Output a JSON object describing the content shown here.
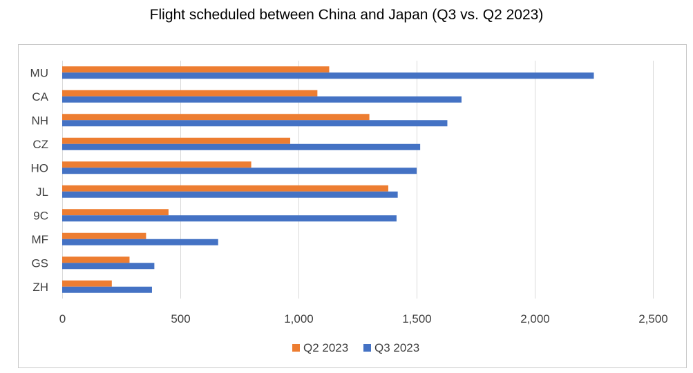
{
  "chart_data": {
    "type": "bar",
    "orientation": "horizontal",
    "title": "Flight scheduled between China and Japan (Q3 vs. Q2 2023)",
    "categories": [
      "MU",
      "CA",
      "NH",
      "CZ",
      "HO",
      "JL",
      "9C",
      "MF",
      "GS",
      "ZH"
    ],
    "series": [
      {
        "name": "Q2 2023",
        "color": "#ED7D31",
        "values": [
          1130,
          1080,
          1300,
          965,
          800,
          1380,
          450,
          355,
          285,
          210
        ]
      },
      {
        "name": "Q3 2023",
        "color": "#4472C4",
        "values": [
          2250,
          1690,
          1630,
          1515,
          1500,
          1420,
          1415,
          660,
          390,
          380
        ]
      }
    ],
    "xlim": [
      0,
      2500
    ],
    "xticks": [
      0,
      500,
      1000,
      1500,
      2000,
      2500
    ],
    "xtick_labels": [
      "0",
      "500",
      "1,000",
      "1,500",
      "2,000",
      "2,500"
    ],
    "grid": "vertical",
    "legend_position": "bottom",
    "xlabel": "",
    "ylabel": ""
  }
}
